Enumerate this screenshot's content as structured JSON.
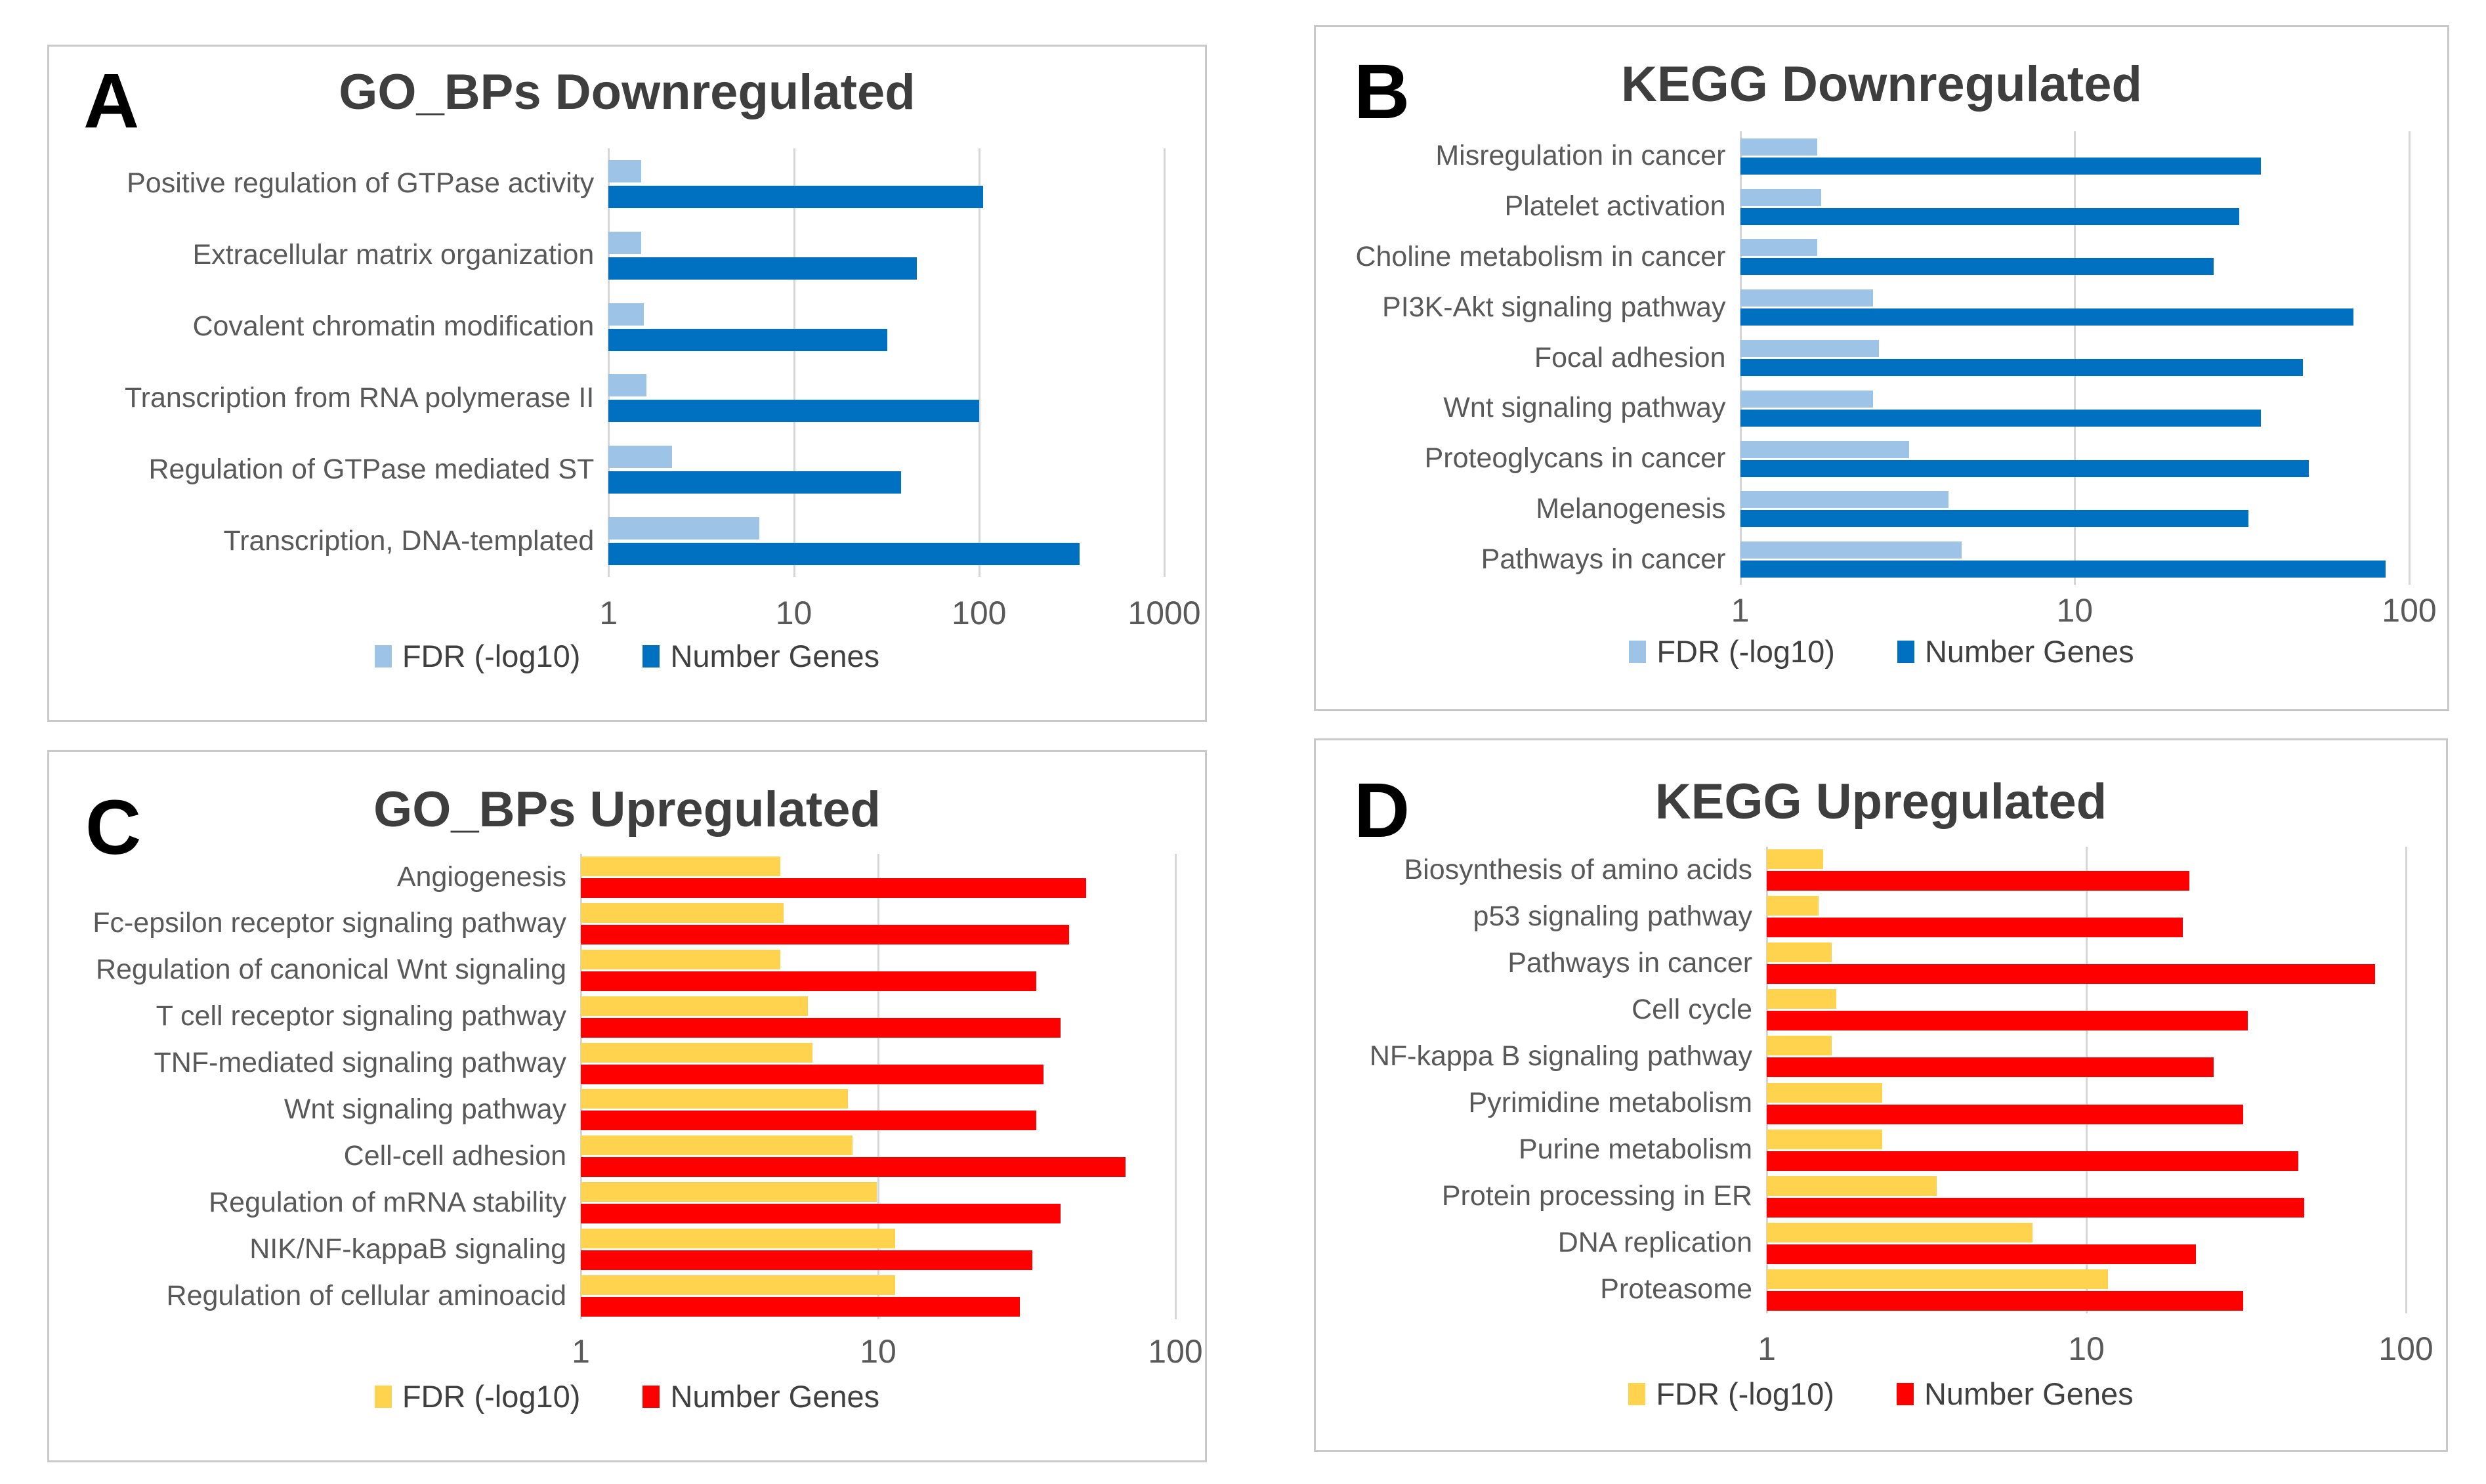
{
  "figure": {
    "panel_letters": [
      "A",
      "B",
      "C",
      "D"
    ],
    "colors": {
      "down_fdr": "#9DC3E6",
      "down_genes": "#0070C0",
      "up_fdr": "#FFD34D",
      "up_genes": "#FF0000",
      "label_text": "#595959",
      "title_text": "#3E3E3E",
      "gridline": "#D6D6D6",
      "panel_border": "#C9C9C9"
    }
  },
  "chart_data": [
    {
      "panel_label": "A",
      "type": "bar",
      "orientation": "horizontal",
      "title": "GO_BPs Downregulated",
      "x_scale": "log10",
      "xlim": [
        1,
        1000
      ],
      "x_ticks": [
        1,
        10,
        100,
        1000
      ],
      "grid": true,
      "legend_position": "bottom",
      "legend": [
        "FDR (-log10)",
        "Number Genes"
      ],
      "series_colors": {
        "fdr": "#9DC3E6",
        "genes": "#0070C0"
      },
      "categories": [
        "Positive regulation of GTPase activity",
        "Extracellular matrix organization",
        "Covalent chromatin modification",
        "Transcription from RNA polymerase II",
        "Regulation of GTPase mediated ST",
        "Transcription, DNA-templated"
      ],
      "series": [
        {
          "name": "FDR (-log10)",
          "values": [
            1.5,
            1.5,
            1.55,
            1.6,
            2.2,
            6.5
          ]
        },
        {
          "name": "Number Genes",
          "values": [
            105,
            46,
            32,
            100,
            38,
            350
          ]
        }
      ]
    },
    {
      "panel_label": "B",
      "type": "bar",
      "orientation": "horizontal",
      "title": "KEGG Downregulated",
      "x_scale": "log10",
      "xlim": [
        1,
        100
      ],
      "x_ticks": [
        1,
        10,
        100
      ],
      "grid": true,
      "legend_position": "bottom",
      "legend": [
        "FDR (-log10)",
        "Number Genes"
      ],
      "series_colors": {
        "fdr": "#9DC3E6",
        "genes": "#0070C0"
      },
      "categories": [
        "Misregulation in cancer",
        "Platelet activation",
        "Choline metabolism in cancer",
        "PI3K-Akt signaling pathway",
        "Focal adhesion",
        "Wnt signaling pathway",
        "Proteoglycans in cancer",
        "Melanogenesis",
        "Pathways in cancer"
      ],
      "series": [
        {
          "name": "FDR (-log10)",
          "values": [
            1.7,
            1.75,
            1.7,
            2.5,
            2.6,
            2.5,
            3.2,
            4.2,
            4.6
          ]
        },
        {
          "name": "Number Genes",
          "values": [
            36,
            31,
            26,
            68,
            48,
            36,
            50,
            33,
            85
          ]
        }
      ]
    },
    {
      "panel_label": "C",
      "type": "bar",
      "orientation": "horizontal",
      "title": "GO_BPs Upregulated",
      "x_scale": "log10",
      "xlim": [
        1,
        100
      ],
      "x_ticks": [
        1,
        10,
        100
      ],
      "grid": true,
      "legend_position": "bottom",
      "legend": [
        "FDR (-log10)",
        "Number Genes"
      ],
      "series_colors": {
        "fdr": "#FFD34D",
        "genes": "#FF0000"
      },
      "categories": [
        "Angiogenesis",
        "Fc-epsilon receptor signaling pathway",
        "Regulation of canonical Wnt signaling",
        "T cell receptor signaling pathway",
        "TNF-mediated signaling pathway",
        "Wnt signaling pathway",
        "Cell-cell adhesion",
        "Regulation of mRNA stability",
        "NIK/NF-kappaB signaling",
        "Regulation of cellular aminoacid"
      ],
      "series": [
        {
          "name": "FDR (-log10)",
          "values": [
            4.7,
            4.8,
            4.7,
            5.8,
            6.0,
            7.9,
            8.2,
            9.9,
            11.4,
            11.4
          ]
        },
        {
          "name": "Number Genes",
          "values": [
            50,
            44,
            34,
            41,
            36,
            34,
            68,
            41,
            33,
            30
          ]
        }
      ]
    },
    {
      "panel_label": "D",
      "type": "bar",
      "orientation": "horizontal",
      "title": "KEGG Upregulated",
      "x_scale": "log10",
      "xlim": [
        1,
        100
      ],
      "x_ticks": [
        1,
        10,
        100
      ],
      "grid": true,
      "legend_position": "bottom",
      "legend": [
        "FDR (-log10)",
        "Number Genes"
      ],
      "series_colors": {
        "fdr": "#FFD34D",
        "genes": "#FF0000"
      },
      "categories": [
        "Biosynthesis of amino acids",
        "p53 signaling pathway",
        "Pathways in cancer",
        "Cell cycle",
        "NF-kappa B signaling pathway",
        "Pyrimidine metabolism",
        "Purine metabolism",
        "Protein processing in ER",
        "DNA replication",
        "Proteasome"
      ],
      "series": [
        {
          "name": "FDR (-log10)",
          "values": [
            1.5,
            1.45,
            1.6,
            1.65,
            1.6,
            2.3,
            2.3,
            3.4,
            6.8,
            11.7
          ]
        },
        {
          "name": "Number Genes",
          "values": [
            21,
            20,
            80,
            32,
            25,
            31,
            46,
            48,
            22,
            31
          ]
        }
      ]
    }
  ]
}
